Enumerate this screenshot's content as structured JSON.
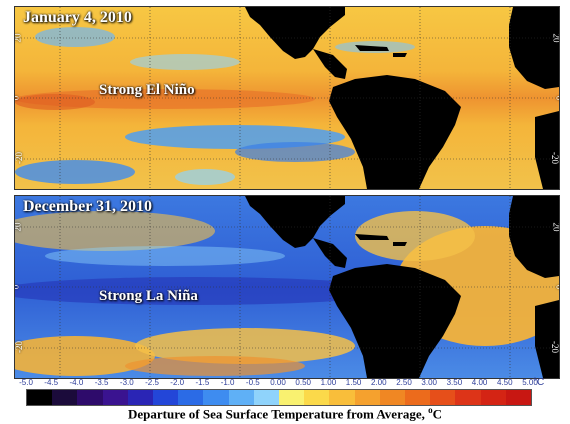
{
  "panels": [
    {
      "date": "January 4, 2010",
      "label": "Strong El Niño",
      "lat_labels": [
        "20",
        "0",
        "-20"
      ]
    },
    {
      "date": "December 31, 2010",
      "label": "Strong La Niña",
      "lat_labels": [
        "20",
        "0",
        "-20"
      ]
    }
  ],
  "colorbar": {
    "ticks": [
      "-5.0",
      "-4.5",
      "-4.0",
      "-3.5",
      "-3.0",
      "-2.5",
      "-2.0",
      "-1.5",
      "-1.0",
      "-0.5",
      "0.00",
      "0.50",
      "1.00",
      "1.50",
      "2.00",
      "2.50",
      "3.00",
      "3.50",
      "4.00",
      "4.50",
      "5.00"
    ],
    "unit": "°C",
    "colors": [
      "#000000",
      "#1b0b3b",
      "#2e0b6b",
      "#3a1390",
      "#2a25b5",
      "#2346d8",
      "#2b6be6",
      "#3e8cf0",
      "#5fb0f6",
      "#8fd3fb",
      "#f9f170",
      "#fbd94a",
      "#f9be3a",
      "#f5a12e",
      "#f08723",
      "#ec6b1c",
      "#e64f1a",
      "#dd3418",
      "#d42414",
      "#c81712"
    ],
    "title": "Departure of Sea Surface Temperature from Average,",
    "title_unit_sup": "o",
    "title_unit": "C"
  }
}
